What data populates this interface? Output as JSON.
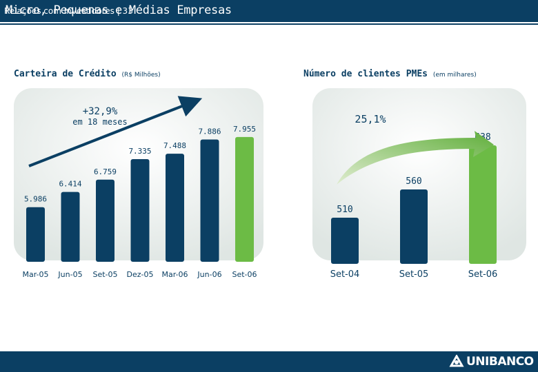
{
  "header": {
    "title": "Micro, Pequenas e Médias Empresas"
  },
  "footer": {
    "text": "Relações com Investidores | 33",
    "logo_text": "UNIBANCO",
    "logo_icon": "unibanco-logo-icon"
  },
  "colors": {
    "navy": "#0b3f63",
    "green": "#6cbb45",
    "panel": "#e6ecea"
  },
  "chart_data": [
    {
      "type": "bar",
      "title": "Carteira de Crédito",
      "unit": "(R$ Milhões)",
      "categories": [
        "Mar-05",
        "Jun-05",
        "Set-05",
        "Dez-05",
        "Mar-06",
        "Jun-06",
        "Set-06"
      ],
      "values": [
        5986,
        6414,
        6759,
        7335,
        7488,
        7886,
        7955
      ],
      "value_labels": [
        "5.986",
        "6.414",
        "6.759",
        "7.335",
        "7.488",
        "7.886",
        "7.955"
      ],
      "highlight_index": 6,
      "annotation": {
        "growth": "+32,9%",
        "period": "em 18 meses"
      }
    },
    {
      "type": "bar",
      "title": "Número de clientes PMEs",
      "unit": "(em milhares)",
      "categories": [
        "Set-04",
        "Set-05",
        "Set-06"
      ],
      "values": [
        510,
        560,
        638
      ],
      "value_labels": [
        "510",
        "560",
        "638"
      ],
      "highlight_index": 2,
      "annotation": {
        "growth": "25,1%"
      }
    }
  ]
}
